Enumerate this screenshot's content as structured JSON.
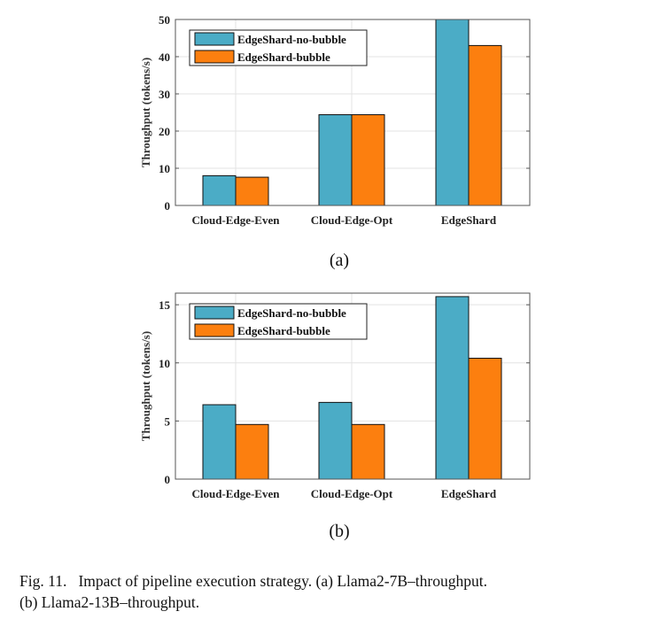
{
  "colors": {
    "no_bubble": "#4bacc6",
    "bubble": "#fc7f0f",
    "grid": "#e3e3e3",
    "axis": "#555555"
  },
  "chart_data": [
    {
      "type": "bar",
      "panel_label": "(a)",
      "categories": [
        "Cloud-Edge-Even",
        "Cloud-Edge-Opt",
        "EdgeShard"
      ],
      "series": [
        {
          "name": "EdgeShard-no-bubble",
          "values": [
            8.0,
            24.4,
            50.0
          ]
        },
        {
          "name": "EdgeShard-bubble",
          "values": [
            7.6,
            24.4,
            43.0
          ]
        }
      ],
      "ylabel": "Throughput (tokens/s)",
      "ylim": [
        0,
        50
      ],
      "yticks": [
        0,
        10,
        20,
        30,
        40,
        50
      ],
      "grid": true,
      "legend_position": "top-left"
    },
    {
      "type": "bar",
      "panel_label": "(b)",
      "categories": [
        "Cloud-Edge-Even",
        "Cloud-Edge-Opt",
        "EdgeShard"
      ],
      "series": [
        {
          "name": "EdgeShard-no-bubble",
          "values": [
            6.4,
            6.6,
            15.7
          ]
        },
        {
          "name": "EdgeShard-bubble",
          "values": [
            4.7,
            4.7,
            10.4
          ]
        }
      ],
      "ylabel": "Throughput (tokens/s)",
      "ylim": [
        0,
        16
      ],
      "yticks": [
        0,
        5,
        10,
        15
      ],
      "grid": true,
      "legend_position": "top-left"
    }
  ],
  "caption": {
    "line1": "Fig. 11.   Impact of pipeline execution strategy. (a) Llama2-7B–throughput.",
    "line2": "(b) Llama2-13B–throughput."
  }
}
